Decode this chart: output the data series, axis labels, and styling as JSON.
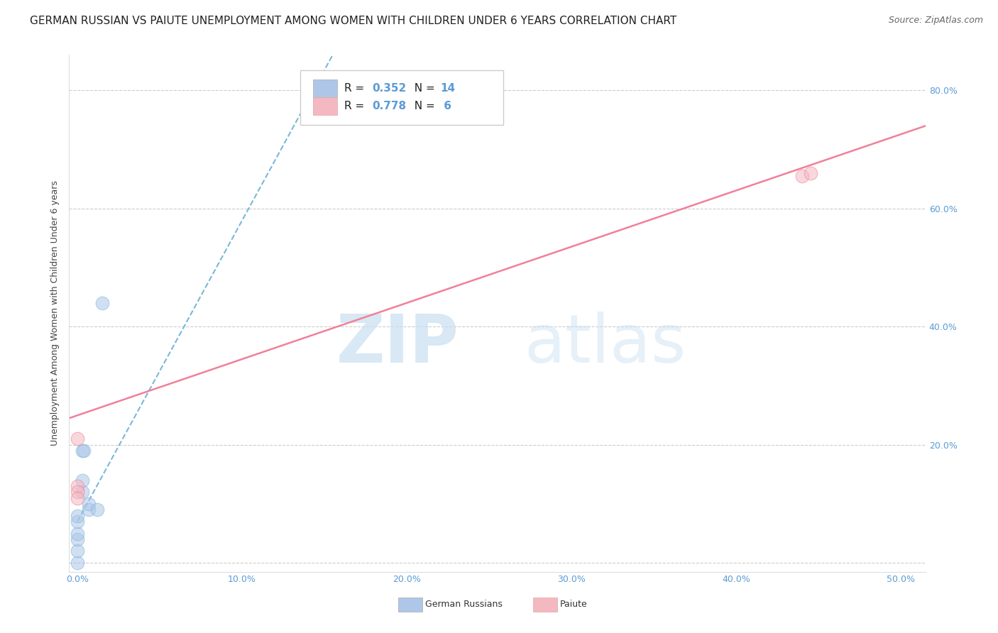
{
  "title": "GERMAN RUSSIAN VS PAIUTE UNEMPLOYMENT AMONG WOMEN WITH CHILDREN UNDER 6 YEARS CORRELATION CHART",
  "source": "Source: ZipAtlas.com",
  "ylabel": "Unemployment Among Women with Children Under 6 years",
  "xmin": -0.005,
  "xmax": 0.515,
  "ymin": -0.015,
  "ymax": 0.86,
  "xticks": [
    0.0,
    0.1,
    0.2,
    0.3,
    0.4,
    0.5
  ],
  "xticklabels": [
    "0.0%",
    "10.0%",
    "20.0%",
    "30.0%",
    "40.0%",
    "50.0%"
  ],
  "yticks": [
    0.0,
    0.2,
    0.4,
    0.6,
    0.8
  ],
  "yticklabels": [
    "",
    "20.0%",
    "40.0%",
    "60.0%",
    "80.0%"
  ],
  "grid_color": "#cccccc",
  "background_color": "#ffffff",
  "watermark_zip": "ZIP",
  "watermark_atlas": "atlas",
  "gr_scatter_x": [
    0.0,
    0.0,
    0.0,
    0.0,
    0.0,
    0.0,
    0.003,
    0.003,
    0.003,
    0.004,
    0.007,
    0.007,
    0.012,
    0.015
  ],
  "gr_scatter_y": [
    0.0,
    0.02,
    0.04,
    0.05,
    0.07,
    0.08,
    0.12,
    0.14,
    0.19,
    0.19,
    0.09,
    0.1,
    0.09,
    0.44
  ],
  "paiute_scatter_x": [
    0.0,
    0.0,
    0.0,
    0.0,
    0.44,
    0.445
  ],
  "paiute_scatter_y": [
    0.21,
    0.13,
    0.12,
    0.11,
    0.655,
    0.66
  ],
  "gr_line_x1": 0.0,
  "gr_line_y1": 0.07,
  "gr_line_x2": 0.155,
  "gr_line_y2": 0.86,
  "paiute_line_x1": -0.005,
  "paiute_line_y1": 0.245,
  "paiute_line_x2": 0.515,
  "paiute_line_y2": 0.74,
  "gr_line_color": "#7ab8d9",
  "paiute_line_color": "#f08098",
  "gr_scatter_face": "#aec6e8",
  "gr_scatter_edge": "#7ab8d9",
  "paiute_scatter_face": "#f4b8c1",
  "paiute_scatter_edge": "#f08098",
  "tick_color": "#5b9bd5",
  "title_fontsize": 11,
  "source_fontsize": 9,
  "axis_tick_fontsize": 9,
  "ylabel_fontsize": 9,
  "scatter_size": 180,
  "scatter_alpha": 0.55,
  "legend_gr_r": "0.352",
  "legend_gr_n": "14",
  "legend_paiute_r": "0.778",
  "legend_paiute_n": " 6",
  "legend_face_color": "#ffffff",
  "legend_edge_color": "#cccccc",
  "bottom_label_gr": "German Russians",
  "bottom_label_paiute": "Paiute"
}
